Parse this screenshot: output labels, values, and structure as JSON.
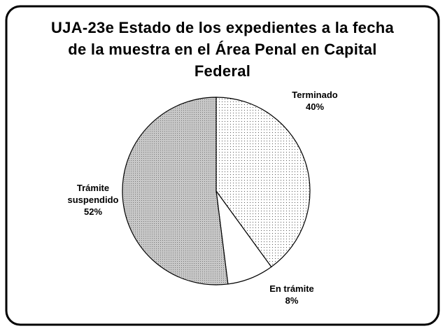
{
  "chart_data": {
    "type": "pie",
    "title": "UJA-23e Estado de los expedientes a la fecha de la muestra en el Área Penal en Capital Federal",
    "categories": [
      "Terminado",
      "En trámite",
      "Trámite suspendido"
    ],
    "values": [
      40,
      8,
      52
    ],
    "value_labels": [
      "40%",
      "8%",
      "52%"
    ],
    "colors": [
      "#ffffff",
      "#ffffff",
      "#c8c8c8"
    ]
  }
}
